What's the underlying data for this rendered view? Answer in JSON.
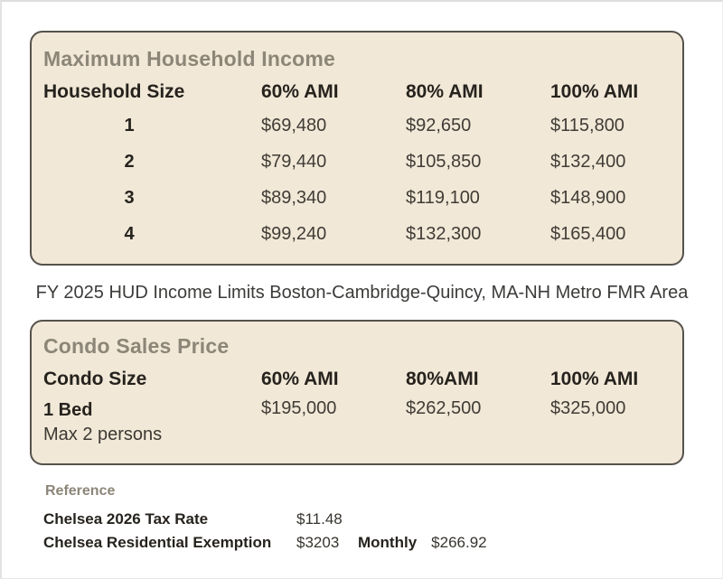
{
  "page": {
    "caption": "FY 2025 HUD Income Limits Boston-Cambridge-Quincy, MA-NH Metro FMR Area"
  },
  "income_table": {
    "title": "Maximum Household Income",
    "headers": [
      "Household Size",
      "60% AMI",
      "80% AMI",
      "100% AMI"
    ],
    "rows": [
      {
        "size": "1",
        "ami60": "$69,480",
        "ami80": "$92,650",
        "ami100": "$115,800"
      },
      {
        "size": "2",
        "ami60": "$79,440",
        "ami80": "$105,850",
        "ami100": "$132,400"
      },
      {
        "size": "3",
        "ami60": "$89,340",
        "ami80": "$119,100",
        "ami100": "$148,900"
      },
      {
        "size": "4",
        "ami60": "$99,240",
        "ami80": "$132,300",
        "ami100": "$165,400"
      }
    ]
  },
  "condo_table": {
    "title": "Condo Sales Price",
    "headers": [
      "Condo Size",
      "60% AMI",
      "80%AMI",
      "100% AMI"
    ],
    "rows": [
      {
        "size": "1 Bed",
        "note": "Max 2 persons",
        "ami60": "$195,000",
        "ami80": "$262,500",
        "ami100": "$325,000"
      }
    ]
  },
  "reference": {
    "title": "Reference",
    "rows": [
      {
        "label": "Chelsea 2026 Tax Rate",
        "value": "$11.48"
      },
      {
        "label": "Chelsea Residential Exemption",
        "value": "$3203",
        "label2": "Monthly",
        "value2": "$266.92"
      }
    ]
  },
  "colors": {
    "panel_background": "#f1e8d7",
    "panel_border": "#55524c",
    "heading_olive": "#8c8678",
    "text_dark": "#26231e",
    "text_body": "#403c36"
  }
}
